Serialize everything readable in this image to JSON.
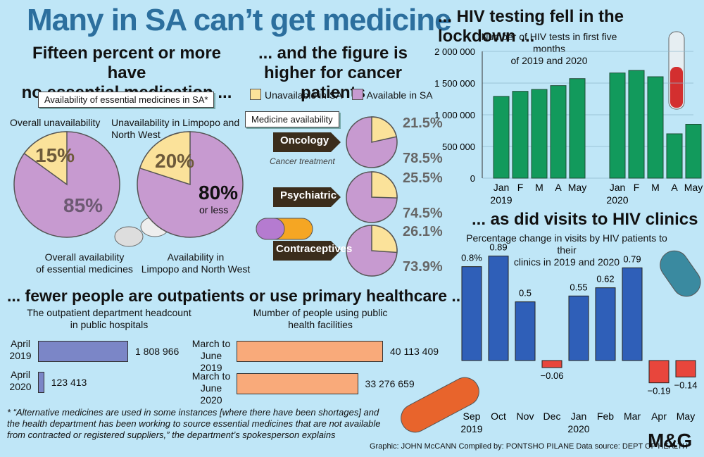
{
  "main_title": "Many in SA can’t get medicine",
  "section1": {
    "heading_line1": "Fifteen percent or more have",
    "heading_line2": "no essential medication ...",
    "box_label": "Availability of essential medicines in SA*",
    "overall_unavail_label": "Overall unavailability",
    "overall_unavail_pct": "15%",
    "overall_avail_pct": "85%",
    "overall_avail_label_1": "Overall availability",
    "overall_avail_label_2": "of essential medicines",
    "limpopo_unavail_label_1": "Unavailability in Limpopo and",
    "limpopo_unavail_label_2": "North West",
    "limpopo_unavail_pct": "20%",
    "limpopo_avail_pct": "80%",
    "limpopo_avail_sub": "or less",
    "limpopo_avail_label_1": "Availability in",
    "limpopo_avail_label_2": "Limpopo and North West"
  },
  "section2": {
    "heading_line1": "... and the figure is",
    "heading_line2": "higher for cancer patients",
    "legend_unavail": "Unavailable in SA",
    "legend_avail": "Available in SA",
    "box_label": "Medicine availability",
    "rows": [
      {
        "name": "Oncology",
        "sub": "Cancer treatment",
        "unavail": "21.5%",
        "avail": "78.5%"
      },
      {
        "name": "Psychiatric",
        "sub": "",
        "unavail": "25.5%",
        "avail": "74.5%"
      },
      {
        "name": "Contraceptives",
        "sub": "",
        "unavail": "26.1%",
        "avail": "73.9%"
      }
    ]
  },
  "section3": {
    "heading": "... fewer people are outpatients or use primary healthcare ...",
    "outpatient_title_1": "The outpatient department headcount",
    "outpatient_title_2": "in public hospitals",
    "outpatient_rows": [
      {
        "label_1": "April",
        "label_2": "2019",
        "value_text": "1 808 966"
      },
      {
        "label_1": "April",
        "label_2": "2020",
        "value_text": "123 413"
      }
    ],
    "facility_title_1": "Mumber of people using public",
    "facility_title_2": "health facilities",
    "facility_rows": [
      {
        "label_1": "March to",
        "label_2": "June 2019",
        "value_text": "40 113 409"
      },
      {
        "label_1": "March to",
        "label_2": "June 2020",
        "value_text": "33 276 659"
      }
    ]
  },
  "footnote_1": "* “Alternative medicines are used in some instances [where there have been shortages] and",
  "footnote_2": "the health department has been working to source essential medicines that are not available",
  "footnote_3": "from contracted or registered suppliers,” the department’s spokesperson explains",
  "credits": "Graphic: JOHN McCANN  Compiled by: PONTSHO PILANE  Data source: DEPT OF HEALTH",
  "logo": "M&G",
  "chart_data": [
    {
      "type": "pie",
      "title": "Availability of essential medicines in SA*",
      "pies": [
        {
          "name": "Overall",
          "slices": [
            {
              "label": "Overall unavailability",
              "value": 15
            },
            {
              "label": "Overall availability of essential medicines",
              "value": 85
            }
          ]
        },
        {
          "name": "Limpopo and North West",
          "slices": [
            {
              "label": "Unavailability in Limpopo and North West",
              "value": 20
            },
            {
              "label": "Availability in Limpopo and North West",
              "value": 80
            }
          ]
        }
      ]
    },
    {
      "type": "pie",
      "title": "Medicine availability",
      "legend": [
        "Unavailable in SA",
        "Available in SA"
      ],
      "pies": [
        {
          "name": "Oncology",
          "slices": [
            {
              "label": "Unavailable in SA",
              "value": 21.5
            },
            {
              "label": "Available in SA",
              "value": 78.5
            }
          ]
        },
        {
          "name": "Psychiatric",
          "slices": [
            {
              "label": "Unavailable in SA",
              "value": 25.5
            },
            {
              "label": "Available in SA",
              "value": 74.5
            }
          ]
        },
        {
          "name": "Contraceptives",
          "slices": [
            {
              "label": "Unavailable in SA",
              "value": 26.1
            },
            {
              "label": "Available in SA",
              "value": 73.9
            }
          ]
        }
      ]
    },
    {
      "type": "bar",
      "orientation": "horizontal",
      "title": "The outpatient department headcount in public hospitals",
      "categories": [
        "April 2019",
        "April 2020"
      ],
      "values": [
        1808966,
        123413
      ]
    },
    {
      "type": "bar",
      "orientation": "horizontal",
      "title": "Mumber of people using public health facilities",
      "categories": [
        "March to June 2019",
        "March to June 2020"
      ],
      "values": [
        40113409,
        33276659
      ]
    },
    {
      "type": "bar",
      "heading": "... HIV testing fell in the lockdown ...",
      "title": "Number of HIV tests in first five months of 2019 and 2020",
      "title_line1": "Number of HIV tests in first five months",
      "title_line2": "of 2019 and 2020",
      "categories": [
        "Jan",
        "F",
        "M",
        "A",
        "May",
        "Jan",
        "F",
        "M",
        "A",
        "May"
      ],
      "year_labels": [
        "2019",
        "2020"
      ],
      "values": [
        1290000,
        1370000,
        1400000,
        1460000,
        1570000,
        1660000,
        1700000,
        1600000,
        700000,
        850000
      ],
      "ylim": [
        0,
        2000000
      ],
      "yticks": [
        0,
        500000,
        1000000,
        1500000,
        2000000
      ],
      "ytick_labels": [
        "0",
        "500 000",
        "1 000 000",
        "1 500 000",
        "2 000 000"
      ],
      "color": "#129a5c"
    },
    {
      "type": "bar",
      "heading": "... as did visits to HIV clinics",
      "title": "Percentage change in visits by HIV patients to their clinics in 2019 and 2020",
      "title_line1": "Percentage change in visits by HIV patients to their",
      "title_line2": "clinics in 2019 and 2020",
      "categories": [
        "Sep",
        "Oct",
        "Nov",
        "Dec",
        "Jan",
        "Feb",
        "Mar",
        "Apr",
        "May"
      ],
      "year_labels": [
        "2019",
        "",
        "",
        "",
        "2020",
        "",
        "",
        "",
        ""
      ],
      "values": [
        0.8,
        0.89,
        0.5,
        -0.06,
        0.55,
        0.62,
        0.79,
        -0.19,
        -0.14
      ],
      "value_labels": [
        "0.8%",
        "0.89",
        "0.5",
        "−0.06",
        "0.55",
        "0.62",
        "0.79",
        "−0.19",
        "−0.14"
      ],
      "positive_color": "#2f5fb8",
      "negative_color": "#e8463c"
    }
  ]
}
